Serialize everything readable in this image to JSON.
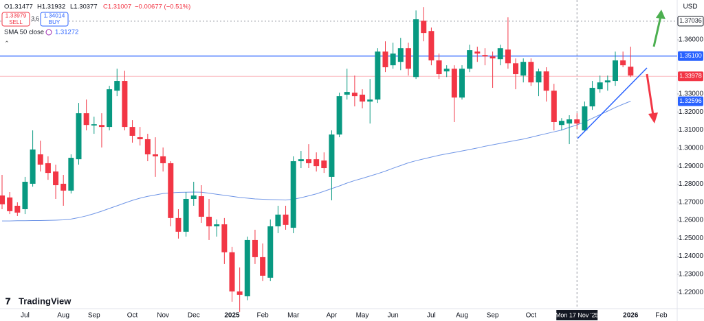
{
  "header": {
    "ohlc": [
      "O1.31477",
      "H1.31932",
      "L1.30377",
      "C1.31007",
      "−0.00677 (−0.51%)"
    ],
    "sell_price": "1.33979",
    "sell": "SELL",
    "spread": "3.6",
    "buy_price": "1.34014",
    "buy": "BUY",
    "sma_value": "1.31272",
    "currency": "USD",
    "logo": "TradingView"
  },
  "chart_data": {
    "type": "candlestick",
    "categories": [
      null,
      null,
      null,
      "Jul",
      null,
      null,
      null,
      null,
      "Aug",
      null,
      null,
      null,
      "Sep",
      null,
      null,
      null,
      null,
      "Oct",
      null,
      null,
      null,
      "Nov",
      null,
      null,
      null,
      "Dec",
      null,
      null,
      null,
      null,
      "2025",
      null,
      null,
      null,
      "Feb",
      null,
      null,
      null,
      "Mar",
      null,
      null,
      null,
      null,
      "Apr",
      null,
      null,
      null,
      "May",
      null,
      null,
      null,
      "Jun",
      null,
      null,
      null,
      null,
      "Jul",
      null,
      null,
      null,
      "Aug",
      null,
      null,
      null,
      "Sep",
      null,
      null,
      null,
      null,
      "Oct",
      null,
      null,
      null,
      null,
      null,
      "Mon 17 Nov '25",
      null,
      null,
      null,
      null,
      null,
      null,
      "2026",
      null,
      null,
      null,
      "Feb"
    ],
    "open": [
      1.2737,
      1.2726,
      1.268,
      1.2661,
      1.2802,
      1.2965,
      1.2916,
      1.287,
      1.2802,
      1.2764,
      1.2938,
      1.3193,
      1.3125,
      1.3128,
      1.3117,
      1.3318,
      1.3372,
      1.3117,
      1.306,
      1.3049,
      1.2965,
      1.2954,
      1.2916,
      1.2612,
      1.2536,
      1.2718,
      1.2733,
      1.2619,
      1.2566,
      1.2577,
      1.2422,
      1.2205,
      1.2178,
      1.249,
      1.2395,
      1.2281,
      1.2566,
      1.2631,
      1.2558,
      1.2927,
      1.2938,
      1.2938,
      1.2931,
      1.284,
      1.3075,
      1.3296,
      1.3307,
      1.3296,
      1.3258,
      1.3269,
      1.3535,
      1.3459,
      1.3478,
      1.3554,
      1.3394,
      1.3706,
      1.3649,
      1.3486,
      1.3425,
      1.344,
      1.328,
      1.344,
      1.3535,
      1.3516,
      1.3508,
      1.3493,
      1.3546,
      1.347,
      1.3402,
      1.3478,
      1.3364,
      1.3425,
      1.3318,
      1.3128,
      1.3136,
      1.3159,
      1.3098,
      1.3231,
      1.3326,
      1.3364,
      1.3372,
      1.3486,
      1.3451,
      null,
      null,
      null,
      null
    ],
    "high": [
      1.2851,
      1.2756,
      1.2699,
      1.284,
      1.3098,
      1.3041,
      1.2954,
      1.2908,
      1.2851,
      1.2965,
      1.325,
      1.3269,
      1.3174,
      1.3193,
      1.3345,
      1.344,
      1.3429,
      1.3155,
      1.3117,
      1.3079,
      1.306,
      1.3003,
      1.2927,
      1.2661,
      1.2756,
      1.2813,
      1.2794,
      1.2718,
      1.2604,
      1.2612,
      1.2452,
      1.2338,
      1.2509,
      1.2547,
      1.2471,
      1.2604,
      1.268,
      1.268,
      1.2954,
      1.2984,
      1.3022,
      1.2976,
      1.2976,
      1.3098,
      1.3307,
      1.344,
      1.3402,
      1.3326,
      1.3383,
      1.3554,
      1.3592,
      1.3584,
      1.3611,
      1.3584,
      1.3763,
      1.3782,
      1.3668,
      1.3524,
      1.3459,
      1.3459,
      1.3459,
      1.3573,
      1.3562,
      1.3554,
      1.3535,
      1.3573,
      1.3725,
      1.3497,
      1.3497,
      1.3497,
      1.344,
      1.3448,
      1.3356,
      1.3166,
      1.3182,
      1.3193,
      1.3258,
      1.3372,
      1.3402,
      1.3402,
      1.3535,
      1.3535,
      1.3562,
      null,
      null,
      null,
      null
    ],
    "low": [
      1.2661,
      1.2634,
      1.2623,
      1.2634,
      1.2786,
      1.287,
      1.2824,
      1.2718,
      1.268,
      1.2748,
      1.2908,
      1.3098,
      1.3079,
      1.3003,
      1.3098,
      1.3288,
      1.3098,
      1.303,
      1.3014,
      1.2927,
      1.284,
      1.287,
      1.2566,
      1.2498,
      1.2509,
      1.268,
      1.2585,
      1.249,
      1.2509,
      1.2357,
      1.2148,
      1.2091,
      1.2156,
      1.2357,
      1.2262,
      1.2262,
      1.2528,
      1.2547,
      1.2528,
      1.2889,
      1.2889,
      1.287,
      1.2862,
      1.271,
      1.306,
      1.3269,
      1.3231,
      1.322,
      1.3136,
      1.325,
      1.3421,
      1.344,
      1.3432,
      1.3402,
      1.3383,
      1.3592,
      1.3459,
      1.3383,
      1.3394,
      1.3144,
      1.3269,
      1.3421,
      1.3478,
      1.3459,
      1.3334,
      1.3459,
      1.344,
      1.3326,
      1.3364,
      1.3345,
      1.3288,
      1.3258,
      1.3098,
      1.3098,
      1.3022,
      1.3106,
      1.309,
      1.3212,
      1.3307,
      1.3318,
      1.3345,
      1.3448,
      1.3394,
      null,
      null,
      null,
      null
    ],
    "close": [
      1.2688,
      1.265,
      1.2642,
      1.2813,
      1.2992,
      1.2908,
      1.2862,
      1.2794,
      1.2764,
      1.2946,
      1.3193,
      1.3128,
      1.3132,
      1.3117,
      1.3326,
      1.3372,
      1.3117,
      1.3068,
      1.3049,
      1.2965,
      1.2954,
      1.2916,
      1.2612,
      1.2536,
      1.2718,
      1.2737,
      1.2619,
      1.2566,
      1.2577,
      1.2422,
      1.2205,
      1.2186,
      1.249,
      1.2395,
      1.2292,
      1.2566,
      1.2631,
      1.2574,
      1.2927,
      1.2938,
      1.2916,
      1.29,
      1.2889,
      1.3075,
      1.3288,
      1.3311,
      1.3288,
      1.3258,
      1.3269,
      1.3535,
      1.3448,
      1.3524,
      1.3554,
      1.344,
      1.3714,
      1.3638,
      1.3486,
      1.341,
      1.344,
      1.328,
      1.344,
      1.3543,
      1.3524,
      1.3508,
      1.3497,
      1.3554,
      1.347,
      1.341,
      1.3478,
      1.3364,
      1.3425,
      1.3318,
      1.3144,
      1.3151,
      1.3159,
      1.3136,
      1.3231,
      1.3334,
      1.3364,
      1.3375,
      1.3486,
      1.3459,
      1.3402,
      null,
      null,
      null,
      null
    ],
    "up_color": "#089981",
    "down_color": "#f23645",
    "sma": {
      "name": "SMA 50 close",
      "color": "#6f95e6",
      "values": [
        1.2596,
        1.2596,
        1.2597,
        1.2597,
        1.2598,
        1.2598,
        1.2599,
        1.26,
        1.2602,
        1.2606,
        1.2614,
        1.2624,
        1.2636,
        1.265,
        1.2665,
        1.268,
        1.2695,
        1.271,
        1.2722,
        1.2732,
        1.274,
        1.2748,
        1.2752,
        1.2754,
        1.2755,
        1.2756,
        1.2755,
        1.275,
        1.2744,
        1.2738,
        1.2732,
        1.2726,
        1.2722,
        1.2718,
        1.2716,
        1.2714,
        1.2713,
        1.2712,
        1.2716,
        1.2725,
        1.2735,
        1.2746,
        1.276,
        1.2775,
        1.279,
        1.2806,
        1.282,
        1.2832,
        1.2845,
        1.2858,
        1.2872,
        1.2888,
        1.2903,
        1.2918,
        1.293,
        1.294,
        1.295,
        1.296,
        1.2968,
        1.2976,
        1.2984,
        1.2992,
        1.3,
        1.301,
        1.3018,
        1.3026,
        1.3034,
        1.3042,
        1.305,
        1.306,
        1.307,
        1.308,
        1.309,
        1.31,
        1.3115,
        1.3128,
        1.3145,
        1.3165,
        1.3185,
        1.3205,
        1.3225,
        1.3243,
        1.326,
        null,
        null,
        null,
        null
      ]
    },
    "ylim": [
      1.2117,
      1.3821
    ],
    "yticks": [
      {
        "value": 1.22,
        "label": "1.22000"
      },
      {
        "value": 1.23,
        "label": "1.23000"
      },
      {
        "value": 1.24,
        "label": "1.24000"
      },
      {
        "value": 1.25,
        "label": "1.25000"
      },
      {
        "value": 1.26,
        "label": "1.26000"
      },
      {
        "value": 1.27,
        "label": "1.27000"
      },
      {
        "value": 1.28,
        "label": "1.28000"
      },
      {
        "value": 1.29,
        "label": "1.29000"
      },
      {
        "value": 1.3,
        "label": "1.30000"
      },
      {
        "value": 1.31,
        "label": "1.31000"
      },
      {
        "value": 1.32,
        "label": "1.32000"
      },
      {
        "value": 1.33,
        "label": "1.33000"
      },
      {
        "value": 1.36,
        "label": "1.36000"
      }
    ],
    "grid": false,
    "levels": [
      {
        "value": 1.37036,
        "label": "1.37036",
        "color": "#131722",
        "line": "dotted"
      },
      {
        "value": 1.351,
        "label": "1.35100",
        "color": "#2962ff",
        "line": "solid"
      },
      {
        "value": 1.33978,
        "label": "1.33978",
        "color": "#f23645",
        "line": "faint"
      },
      {
        "value": 1.32596,
        "label": "1.32596",
        "color": "#2962ff",
        "line": "none"
      }
    ]
  }
}
